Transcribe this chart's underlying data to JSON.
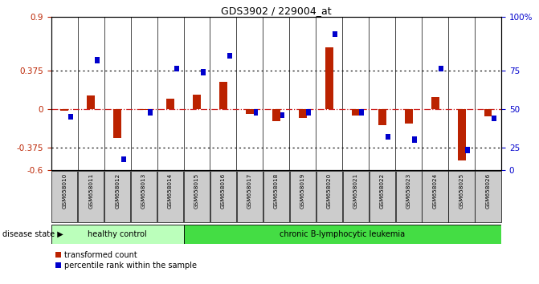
{
  "title": "GDS3902 / 229004_at",
  "samples": [
    "GSM658010",
    "GSM658011",
    "GSM658012",
    "GSM658013",
    "GSM658014",
    "GSM658015",
    "GSM658016",
    "GSM658017",
    "GSM658018",
    "GSM658019",
    "GSM658020",
    "GSM658021",
    "GSM658022",
    "GSM658023",
    "GSM658024",
    "GSM658025",
    "GSM658026"
  ],
  "red_bars": [
    -0.02,
    0.13,
    -0.28,
    -0.01,
    0.1,
    0.14,
    0.27,
    -0.05,
    -0.12,
    -0.09,
    0.6,
    -0.06,
    -0.16,
    -0.14,
    0.12,
    -0.5,
    -0.07
  ],
  "blue_pct": [
    45,
    80,
    12,
    48,
    76,
    74,
    82,
    48,
    46,
    48,
    92,
    48,
    32,
    30,
    76,
    22,
    44
  ],
  "healthy_count": 5,
  "ylim": [
    -0.6,
    0.9
  ],
  "yticks_left": [
    -0.6,
    -0.375,
    0.0,
    0.375,
    0.9
  ],
  "ytick_labels_left": [
    "-0.6",
    "-0.375",
    "0",
    "0.375",
    "0.9"
  ],
  "right_pct_ticks": [
    0,
    25,
    50,
    75,
    100
  ],
  "right_tick_labels": [
    "0",
    "25",
    "50",
    "75",
    "100%"
  ],
  "hlines": [
    0.375,
    -0.375
  ],
  "bar_color": "#bb2200",
  "dot_color": "#0000cc",
  "zero_line_color": "#cc2222",
  "healthy_color": "#bbffbb",
  "leukemia_color": "#44dd44",
  "group_healthy": "healthy control",
  "group_leukemia": "chronic B-lymphocytic leukemia",
  "legend1": "transformed count",
  "legend2": "percentile rank within the sample",
  "disease_state_label": "disease state",
  "bg_color": "#ffffff",
  "label_bg": "#cccccc"
}
